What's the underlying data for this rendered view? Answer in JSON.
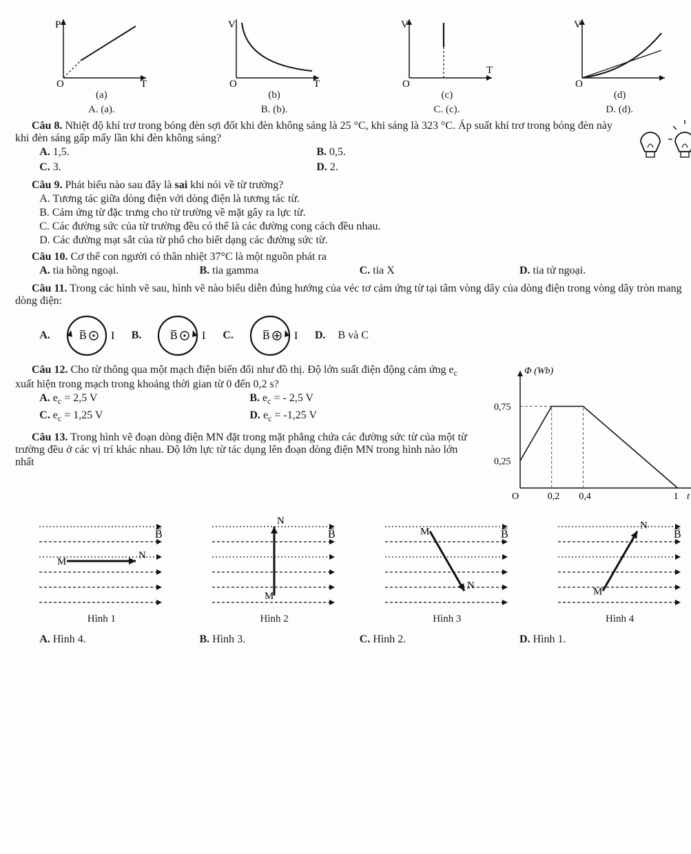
{
  "colors": {
    "ink": "#1a1a1a",
    "bg": "#fdfdfb",
    "stroke": "#111111",
    "dash": "#555555"
  },
  "topPlots": {
    "common": {
      "axisColor": "#111111",
      "lineWidth": 1.5,
      "fontSize": 15
    },
    "a": {
      "xlabel": "T",
      "ylabel": "P",
      "caption": "(a)",
      "type": "linear-up"
    },
    "b": {
      "xlabel": "T",
      "ylabel": "V",
      "caption": "(b)",
      "type": "hyperbola"
    },
    "c": {
      "xlabel": "T",
      "ylabel": "V",
      "caption": "(c)",
      "type": "vertical"
    },
    "d": {
      "xlabel": "",
      "ylabel": "V",
      "caption": "(d)",
      "type": "curve-up"
    }
  },
  "optLine": {
    "A": "A. (a).",
    "B": "B. (b).",
    "C": "C. (c).",
    "D": "D. (d)."
  },
  "q8": {
    "label": "Câu 8.",
    "stem": "Nhiệt độ khí trơ trong bóng đèn sợi đốt khi đèn không sáng là 25 °C, khi sáng là 323 °C. Áp suất khí trơ trong bóng đèn này khi đèn sáng gấp mấy lần khi đèn không sáng?",
    "opts": {
      "A": "1,5.",
      "B": "0,5.",
      "C": "3.",
      "D": "2."
    }
  },
  "q9": {
    "label": "Câu 9.",
    "stem": "Phát biểu nào sau đây là sai khi nói về từ trường?",
    "opts": {
      "A": "Tương tác giữa dòng điện với dòng điện là tương tác từ.",
      "B": "Cảm ứng từ đặc trưng cho từ trường về mặt gây ra lực từ.",
      "C": "Các đường sức của từ trường đều có thể là các đường cong cách đều nhau.",
      "D": "Các đường mạt sắt của từ phổ cho biết dạng các đường sức từ."
    }
  },
  "q10": {
    "label": "Câu 10.",
    "stem": "Cơ thể con người có thân nhiệt 37°C là một nguồn phát ra",
    "opts": {
      "A": "tia hồng ngoại.",
      "B": "tia gamma",
      "C": "tia X",
      "D": "tia tử ngoại."
    }
  },
  "q11": {
    "label": "Câu 11.",
    "stem": "Trong các hình vẽ sau, hình vẽ nào biểu diễn đúng hướng của véc tơ cảm ứng từ tại tâm vòng dây của dòng điện trong vòng dây tròn mang dòng điện:",
    "opts": {
      "D": "B và C"
    },
    "circleStyle": {
      "radius": 30,
      "stroke": "#111111",
      "lineWidth": 2
    },
    "centerA": "⊙",
    "centerB": "⊙",
    "centerC": "⊕",
    "labelB": "B̅",
    "labelI": "I"
  },
  "q12": {
    "label": "Câu 12.",
    "stem": "Cho từ thông qua một mạch điện biến đổi như đồ thị. Độ lớn suất điện động cảm ứng eₙ xuất hiện trong mạch trong khoảng thời gian từ 0 đến 0,2 s?",
    "opts": {
      "A": "eₙ = 2,5 V",
      "B": "eₙ = - 2,5 V",
      "C": "eₙ = 1,25 V",
      "D": "eₙ = -1,25 V"
    },
    "chart": {
      "type": "line",
      "xlabel": "t (s)",
      "ylabel": "Φ (Wb)",
      "points": [
        [
          0,
          0.25
        ],
        [
          0.2,
          0.75
        ],
        [
          0.4,
          0.75
        ],
        [
          1,
          0
        ]
      ],
      "xticks": [
        0,
        0.2,
        0.4,
        1
      ],
      "xtick_labels": [
        "O",
        "0,2",
        "0,4",
        "1"
      ],
      "yticks": [
        0.25,
        0.75
      ],
      "ytick_labels": [
        "0,25",
        "0,75"
      ],
      "xlim": [
        0,
        1.05
      ],
      "ylim": [
        0,
        1.0
      ],
      "axisColor": "#111111",
      "lineColor": "#111111",
      "dashColor": "#555555",
      "lineWidth": 1.6,
      "fontSize": 14
    }
  },
  "q13": {
    "label": "Câu 13.",
    "stem": "Trong hình vẽ đoạn dòng điện MN đặt trong mặt phẳng chứa các đường sức từ của một từ trường đều ở các vị trí khác nhau. Độ lớn lực từ tác dụng lên đoạn dòng điện MN trong hình nào lớn nhất",
    "figs": {
      "common": {
        "fieldColor": "#111111",
        "mnColor": "#111111",
        "arrowWidth": 1.5,
        "Blabel": "B̅"
      },
      "h1": {
        "caption": "Hình 1",
        "mn_angle_deg": 0
      },
      "h2": {
        "caption": "Hình 2",
        "mn_angle_deg": 90
      },
      "h3": {
        "caption": "Hình 3",
        "mn_angle_deg": -60
      },
      "h4": {
        "caption": "Hình 4",
        "mn_angle_deg": 60
      }
    },
    "opts": {
      "A": "Hình 4.",
      "B": "Hình 3.",
      "C": "Hình 2.",
      "D": "Hình 1."
    }
  }
}
